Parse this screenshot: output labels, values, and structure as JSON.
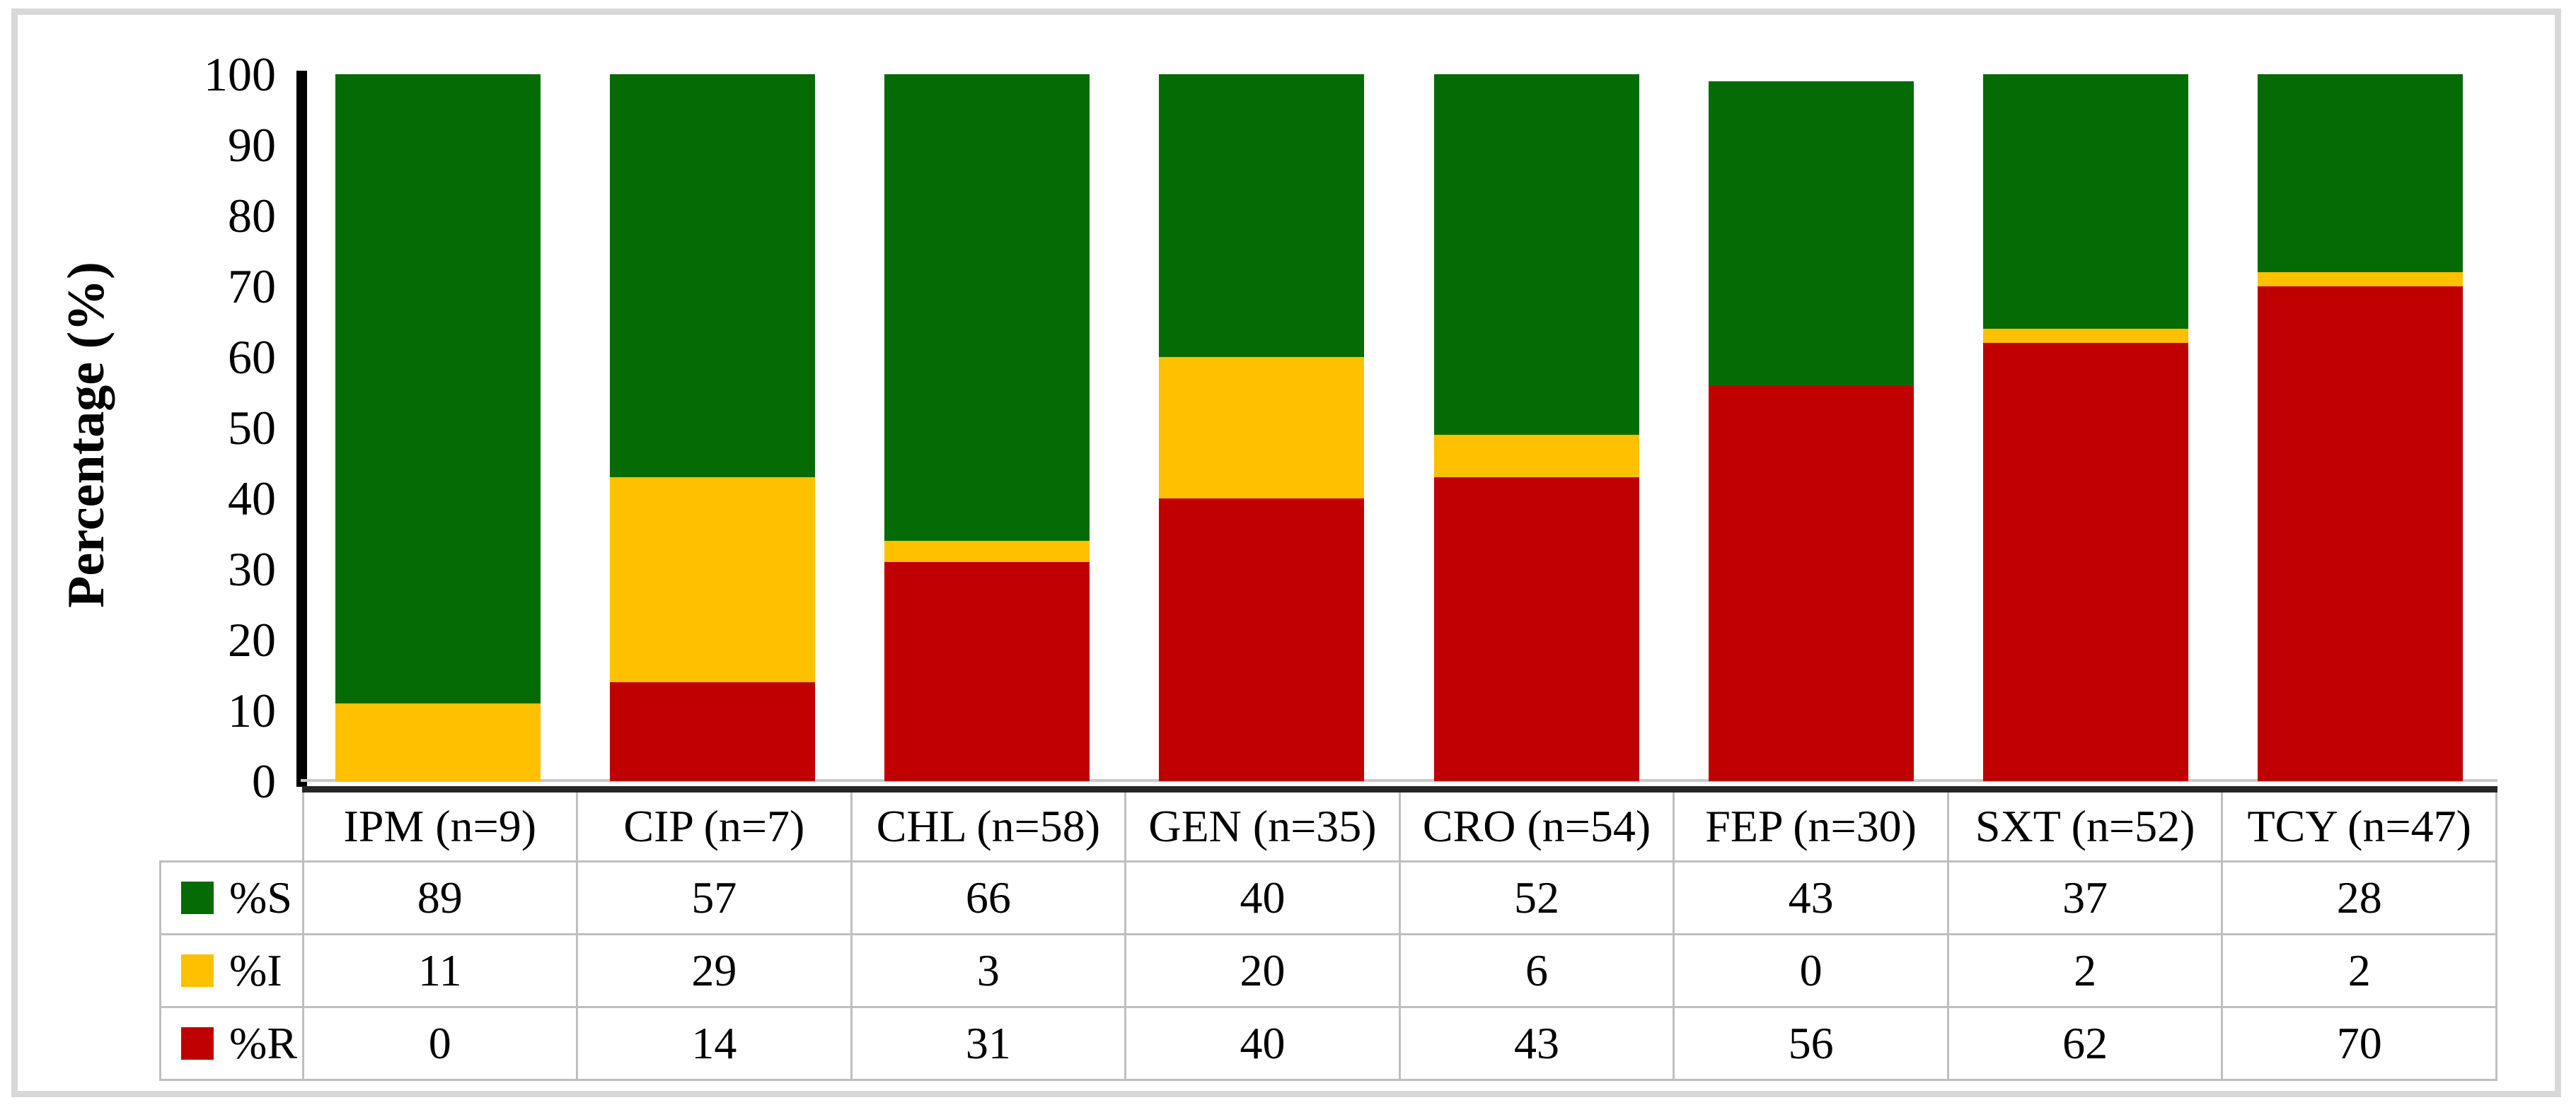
{
  "chart_data": {
    "type": "bar",
    "stacked": true,
    "percent_stacked": true,
    "title": "",
    "xlabel": "",
    "ylabel": "Percentage (%)",
    "ylim": [
      0,
      100
    ],
    "yticks": [
      0,
      10,
      20,
      30,
      40,
      50,
      60,
      70,
      80,
      90,
      100
    ],
    "grid": false,
    "legend_position": "table-left",
    "categories": [
      "IPM (n=9)",
      "CIP (n=7)",
      "CHL (n=58)",
      "GEN (n=35)",
      "CRO (n=54)",
      "FEP (n=30)",
      "SXT (n=52)",
      "TCY (n=47)"
    ],
    "series": [
      {
        "name": "%S",
        "color": "#056B05",
        "values": [
          89,
          57,
          66,
          40,
          52,
          43,
          37,
          28
        ]
      },
      {
        "name": "%I",
        "color": "#FFC000",
        "values": [
          11,
          29,
          3,
          20,
          6,
          0,
          2,
          2
        ]
      },
      {
        "name": "%R",
        "color": "#C00000",
        "values": [
          0,
          14,
          31,
          40,
          43,
          56,
          62,
          70
        ]
      }
    ]
  },
  "colors": {
    "axis_line": "#000000",
    "table_border": "#bfbfbf",
    "table_top_border": "#262626",
    "card_border": "#d8d8d8",
    "background": "#ffffff"
  }
}
